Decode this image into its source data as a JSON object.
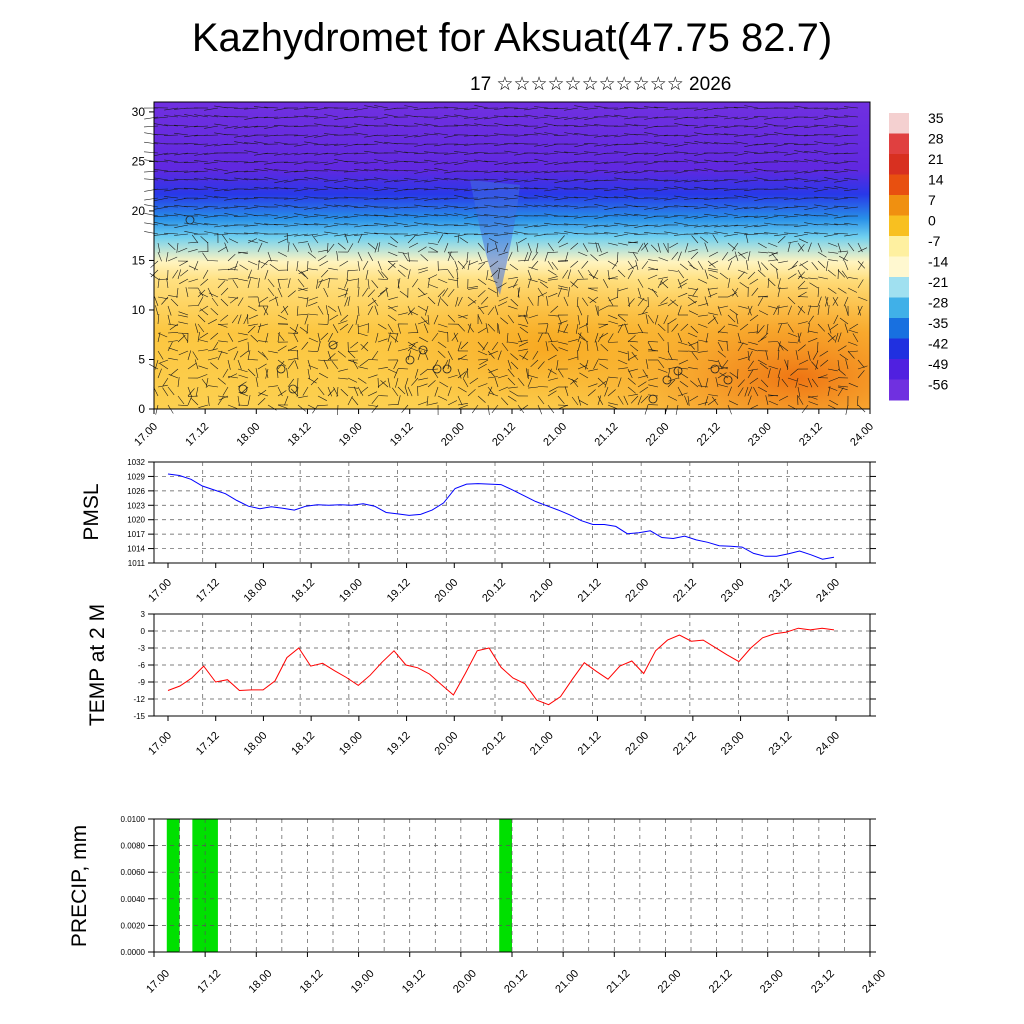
{
  "title": "Kazhydromet for Aksuat(47.75 82.7)",
  "subtitle": "17 ☆☆☆☆☆☆☆☆☆☆☆ 2026",
  "time_labels": [
    "17.00",
    "17.12",
    "18.00",
    "18.12",
    "19.00",
    "19.12",
    "20.00",
    "20.12",
    "21.00",
    "21.12",
    "22.00",
    "22.12",
    "23.00",
    "23.12",
    "24.00"
  ],
  "chart_data": [
    {
      "type": "heatmap",
      "name": "cross-section",
      "description_axis": "height",
      "y_ticks": [
        0,
        5,
        10,
        15,
        20,
        25,
        30
      ],
      "ylim": [
        0,
        31
      ],
      "colorbar": {
        "labels": [
          "35",
          "28",
          "21",
          "14",
          "7",
          "0",
          "-7",
          "-14",
          "-21",
          "-28",
          "-35",
          "-42",
          "-49",
          "-56"
        ],
        "colors": [
          "#f4d0d0",
          "#e04040",
          "#d83020",
          "#e85010",
          "#f09010",
          "#f8c020",
          "#fef0a0",
          "#fff8d0",
          "#a0e0f0",
          "#40b0e8",
          "#1870e0",
          "#2030e0",
          "#5020e0",
          "#7030e0"
        ]
      }
    },
    {
      "type": "line",
      "name": "PMSL",
      "ylabel": "PMSL",
      "ylim": [
        1011,
        1032
      ],
      "y_ticks": [
        1011,
        1014,
        1017,
        1020,
        1023,
        1026,
        1029,
        1032
      ],
      "color": "#0000ff",
      "series": [
        {
          "name": "PMSL",
          "values": [
            1029.5,
            1029.2,
            1028.4,
            1027.0,
            1026.2,
            1025.4,
            1024.0,
            1022.8,
            1022.3,
            1022.7,
            1022.4,
            1022.0,
            1022.8,
            1023.1,
            1023.0,
            1023.1,
            1023.0,
            1023.3,
            1022.8,
            1021.5,
            1021.2,
            1020.9,
            1021.1,
            1022.0,
            1023.5,
            1026.5,
            1027.4,
            1027.5,
            1027.4,
            1027.3,
            1026.2,
            1025.0,
            1023.8,
            1022.9,
            1022.0,
            1021.0,
            1019.8,
            1019.0,
            1019.0,
            1018.6,
            1017.1,
            1017.3,
            1017.7,
            1016.3,
            1016.1,
            1016.6,
            1015.8,
            1015.3,
            1014.6,
            1014.5,
            1014.3,
            1013.0,
            1012.4,
            1012.4,
            1012.9,
            1013.5,
            1012.7,
            1011.8,
            1012.2
          ]
        }
      ]
    },
    {
      "type": "line",
      "name": "TEMP at 2 M",
      "ylabel": "TEMP at 2 M",
      "ylim": [
        -15,
        3
      ],
      "y_ticks": [
        -15,
        -12,
        -9,
        -6,
        -3,
        0,
        3
      ],
      "color": "#ff0000",
      "series": [
        {
          "name": "TEMP",
          "values": [
            -10.5,
            -9.7,
            -8.3,
            -6.2,
            -9.0,
            -8.6,
            -10.5,
            -10.4,
            -10.4,
            -8.8,
            -4.7,
            -3.0,
            -6.2,
            -5.7,
            -7.0,
            -8.2,
            -9.6,
            -7.8,
            -5.5,
            -3.5,
            -6.0,
            -6.5,
            -7.6,
            -9.5,
            -11.3,
            -7.5,
            -3.5,
            -3.0,
            -6.4,
            -8.3,
            -9.3,
            -12.2,
            -13.0,
            -11.6,
            -8.5,
            -5.6,
            -7.1,
            -8.5,
            -6.2,
            -5.3,
            -7.5,
            -3.5,
            -1.6,
            -0.7,
            -1.8,
            -1.6,
            -2.9,
            -4.2,
            -5.4,
            -3.0,
            -1.2,
            -0.5,
            -0.2,
            0.5,
            0.2,
            0.5,
            0.2
          ]
        }
      ]
    },
    {
      "type": "bar",
      "name": "PRECIP",
      "ylabel": "PRECIP, mm",
      "ylim": [
        0,
        0.01
      ],
      "y_tick_labels": [
        "0.0000",
        "0.0020",
        "0.0040",
        "0.0060",
        "0.0080",
        "0.0100"
      ],
      "color": "#00e000",
      "bars": [
        {
          "start_hour": 3.0,
          "end_hour": 6.0,
          "value": 0.01
        },
        {
          "start_hour": 9.0,
          "end_hour": 15.0,
          "value": 0.01
        },
        {
          "start_hour": 81.0,
          "end_hour": 84.0,
          "value": 0.01
        }
      ]
    }
  ]
}
